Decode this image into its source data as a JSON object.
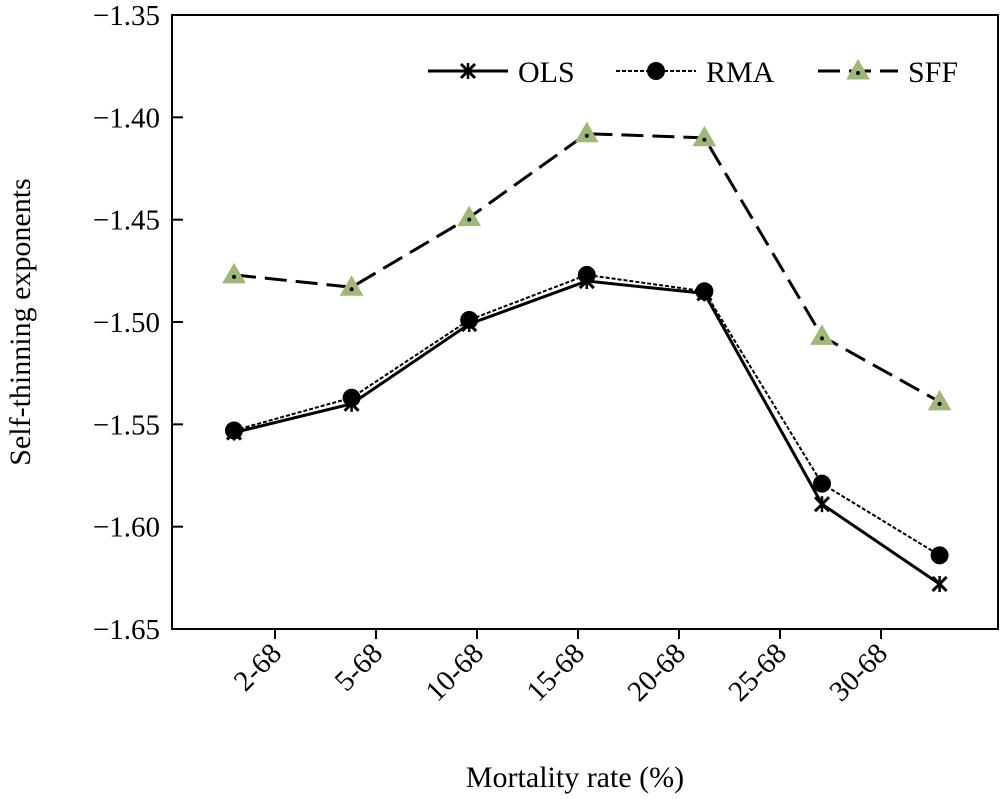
{
  "chart_data": {
    "type": "line",
    "title": "",
    "xlabel": "Mortality rate (%)",
    "ylabel": "Self-thinning exponents",
    "categories": [
      "2-68",
      "5-68",
      "10-68",
      "15-68",
      "20-68",
      "25-68",
      "30-68"
    ],
    "ylim": [
      -1.65,
      -1.35
    ],
    "yticks": [
      "-1.35",
      "-1.40",
      "-1.45",
      "-1.50",
      "-1.55",
      "-1.60",
      "-1.65"
    ],
    "legend_position": "top-right",
    "grid": false,
    "series": [
      {
        "name": "OLS",
        "values": [
          -1.554,
          -1.54,
          -1.501,
          -1.48,
          -1.486,
          -1.589,
          -1.628
        ],
        "color": "#000000",
        "marker": "x",
        "line": "solid"
      },
      {
        "name": "RMA",
        "values": [
          -1.553,
          -1.537,
          -1.499,
          -1.477,
          -1.485,
          -1.579,
          -1.614
        ],
        "color": "#000000",
        "marker": "circle",
        "line": "dotted"
      },
      {
        "name": "SFF",
        "values": [
          -1.477,
          -1.483,
          -1.449,
          -1.408,
          -1.41,
          -1.507,
          -1.539
        ],
        "color": "#000000",
        "marker_fill": "#9fb878",
        "marker": "triangle",
        "line": "dashed"
      }
    ]
  }
}
